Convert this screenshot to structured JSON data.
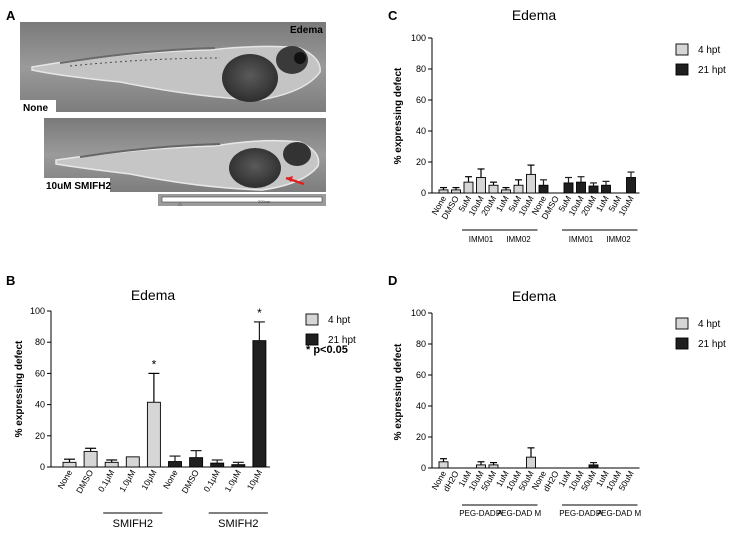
{
  "panel_a": {
    "letter": "A",
    "title": "Edema",
    "label_top": "None",
    "label_bottom": "10uM SMIFH2",
    "scale_text": "200um"
  },
  "chart_data": [
    {
      "panel": "B",
      "type": "bar",
      "title": "Edema",
      "ylabel": "% expressing defect",
      "ylim": [
        0,
        100
      ],
      "yticks": [
        0,
        20,
        40,
        60,
        80,
        100
      ],
      "categories": [
        "None",
        "DMSO",
        "0.1μM",
        "1.0μM",
        "10μM",
        "None",
        "DMSO",
        "0.1μM",
        "1.0μM",
        "10μM"
      ],
      "values": [
        3,
        10,
        3,
        6.5,
        41.5,
        3.5,
        6,
        2.5,
        1.5,
        81
      ],
      "errors": [
        2,
        2,
        1.5,
        0,
        18.5,
        3.5,
        4.5,
        2,
        1.5,
        12
      ],
      "series_index": [
        0,
        0,
        0,
        0,
        0,
        1,
        1,
        1,
        1,
        1
      ],
      "series": [
        {
          "name": "4 hpt",
          "color": "#d6d6d6"
        },
        {
          "name": "21 hpt",
          "color": "#1f1f1f"
        }
      ],
      "groups": [
        {
          "label": "SMIFH2",
          "from": 2,
          "to": 4
        },
        {
          "label": "SMIFH2",
          "from": 7,
          "to": 9
        }
      ],
      "significance": [
        {
          "index": 4,
          "mark": "*"
        },
        {
          "index": 9,
          "mark": "*"
        }
      ],
      "note": "* p<0.05"
    },
    {
      "panel": "C",
      "type": "bar",
      "title": "Edema",
      "ylabel": "% expressing defect",
      "ylim": [
        0,
        100
      ],
      "yticks": [
        0,
        20,
        40,
        60,
        80,
        100
      ],
      "categories": [
        "None",
        "DMSO",
        "5uM",
        "10uM",
        "20uM",
        "1uM",
        "5uM",
        "10uM",
        "None",
        "DMSO",
        "5uM",
        "10uM",
        "20uM",
        "1uM",
        "5uM",
        "10uM"
      ],
      "values": [
        2,
        2,
        7,
        10,
        5,
        2,
        5,
        12,
        5,
        0,
        6.5,
        7,
        4.5,
        5,
        0,
        10
      ],
      "errors": [
        1.5,
        1.5,
        3.5,
        5.5,
        2,
        1.5,
        3.5,
        6,
        3.5,
        0,
        3.5,
        3.5,
        2,
        2.5,
        0,
        3.5
      ],
      "series_index": [
        0,
        0,
        0,
        0,
        0,
        0,
        0,
        0,
        1,
        1,
        1,
        1,
        1,
        1,
        1,
        1
      ],
      "series": [
        {
          "name": "4 hpt",
          "color": "#d6d6d6"
        },
        {
          "name": "21 hpt",
          "color": "#1f1f1f"
        }
      ],
      "groups": [
        {
          "label": "IMM01",
          "from": 2,
          "to": 4
        },
        {
          "label": "IMM02",
          "from": 5,
          "to": 7
        },
        {
          "label": "IMM01",
          "from": 10,
          "to": 12
        },
        {
          "label": "IMM02",
          "from": 13,
          "to": 15
        }
      ]
    },
    {
      "panel": "D",
      "type": "bar",
      "title": "Edema",
      "ylabel": "% expressing defect",
      "ylim": [
        0,
        100
      ],
      "yticks": [
        0,
        20,
        40,
        60,
        80,
        100
      ],
      "categories": [
        "None",
        "dH2O",
        "1uM",
        "10uM",
        "50uM",
        "1uM",
        "10uM",
        "50uM",
        "None",
        "dH2O",
        "1uM",
        "10uM",
        "50uM",
        "1uM",
        "10uM",
        "50uM"
      ],
      "values": [
        4,
        0,
        0,
        2,
        2,
        0,
        0,
        7,
        0,
        0,
        0,
        0,
        2,
        0,
        0,
        0
      ],
      "errors": [
        2,
        0,
        0,
        2,
        1.5,
        0,
        0,
        6,
        0,
        0,
        0,
        0,
        1.5,
        0,
        0,
        0
      ],
      "series_index": [
        0,
        0,
        0,
        0,
        0,
        0,
        0,
        0,
        1,
        1,
        1,
        1,
        1,
        1,
        1,
        1
      ],
      "series": [
        {
          "name": "4 hpt",
          "color": "#d6d6d6"
        },
        {
          "name": "21 hpt",
          "color": "#1f1f1f"
        }
      ],
      "groups": [
        {
          "label": "PEG-DAD A",
          "from": 2,
          "to": 4
        },
        {
          "label": "PEG-DAD M",
          "from": 5,
          "to": 7
        },
        {
          "label": "PEG-DAD A",
          "from": 10,
          "to": 12
        },
        {
          "label": "PEG-DAD M",
          "from": 13,
          "to": 15
        }
      ]
    }
  ]
}
